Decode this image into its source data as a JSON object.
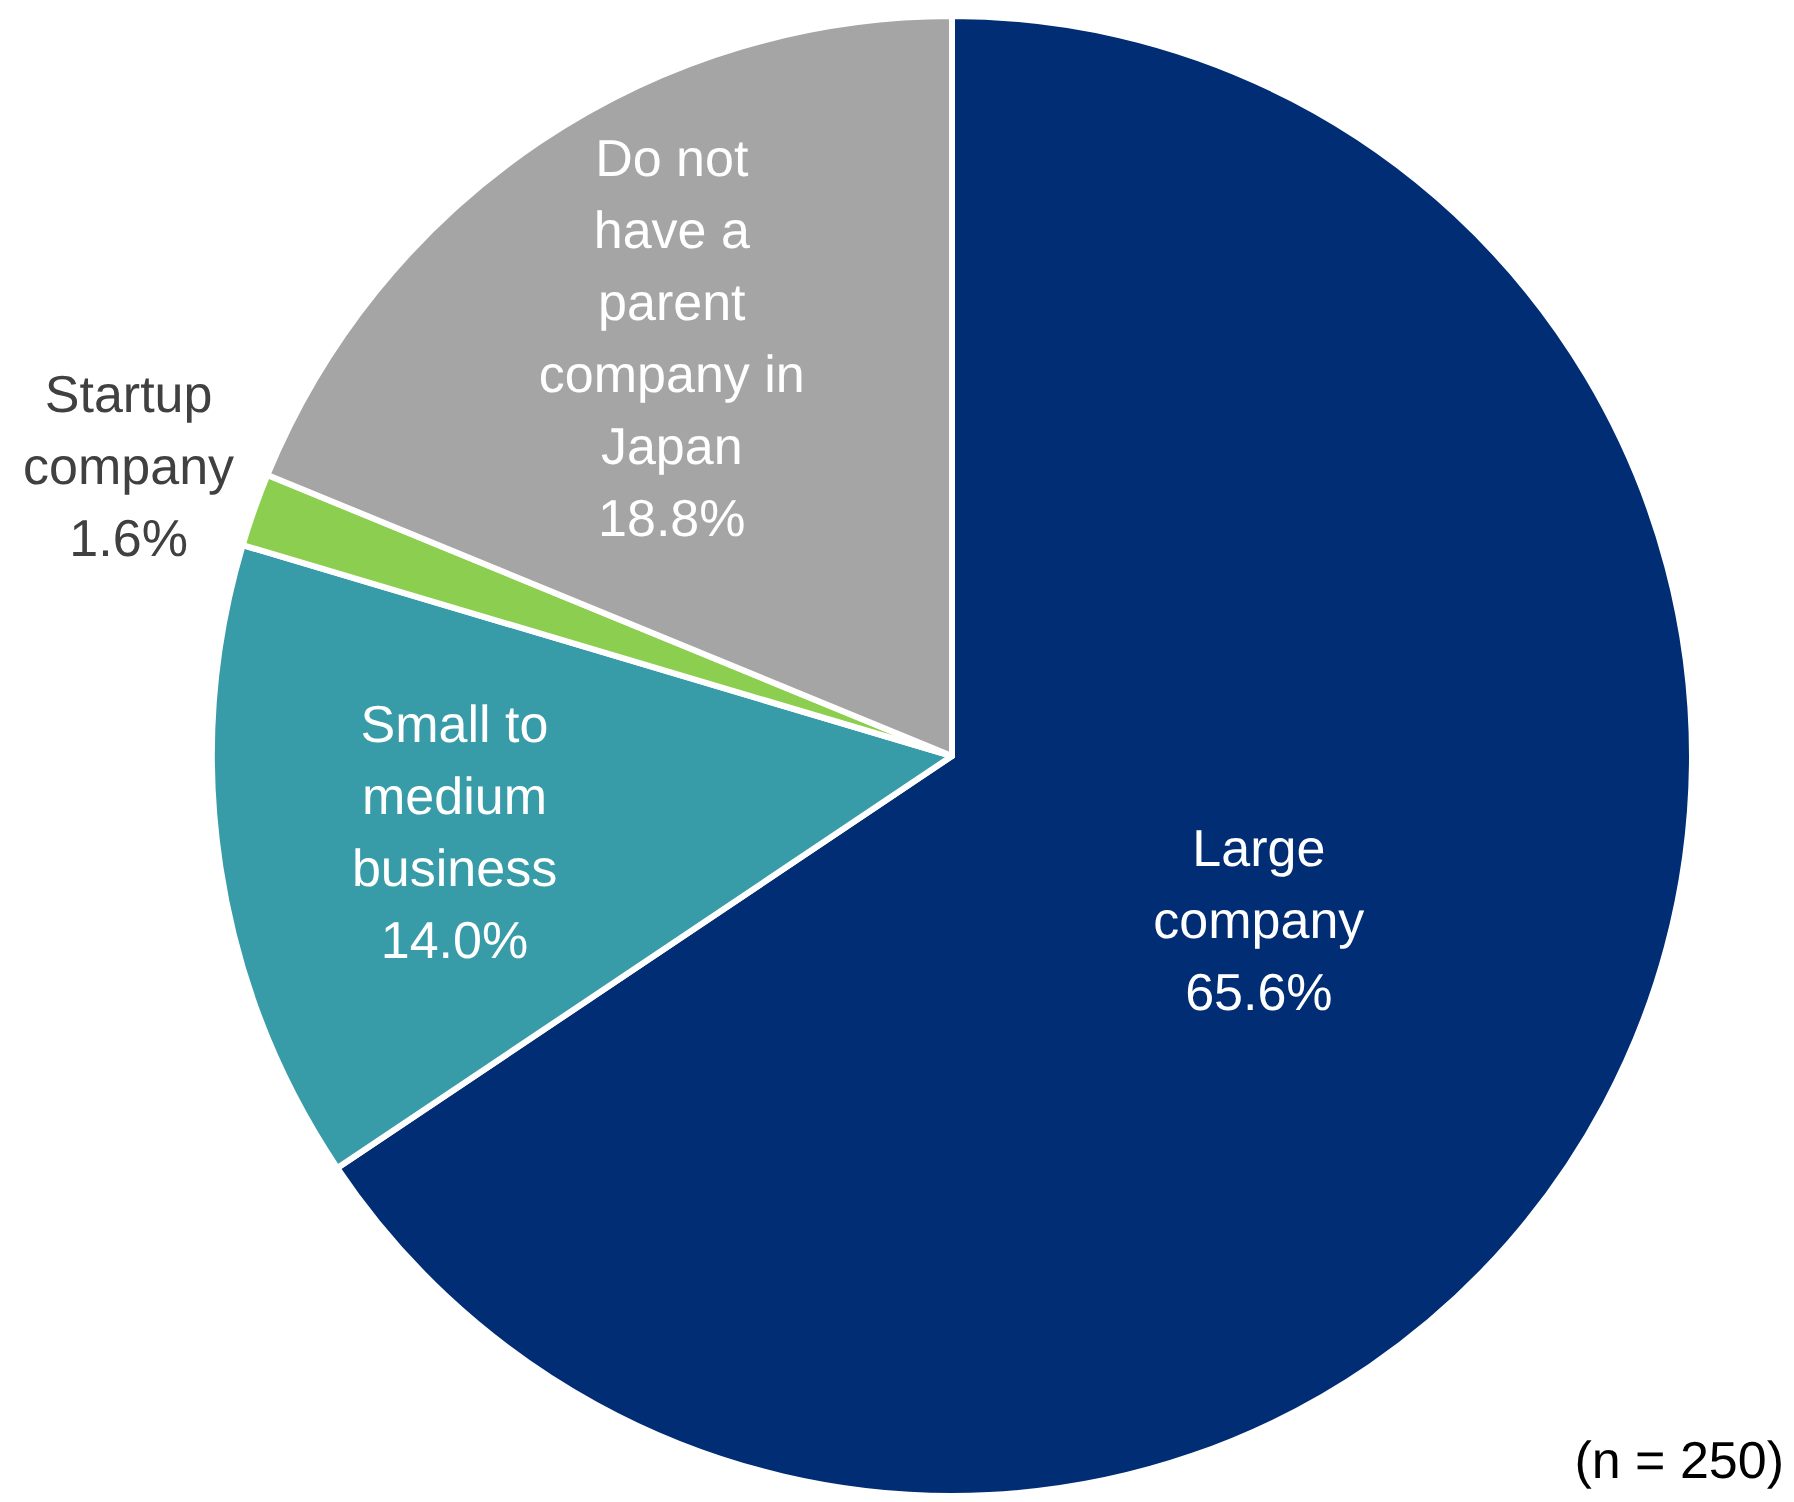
{
  "chart_data": {
    "type": "pie",
    "categories": [
      "Large company",
      "Small to medium business",
      "Startup company",
      "Do not have a parent company in Japan"
    ],
    "values": [
      65.6,
      14.0,
      1.6,
      18.8
    ],
    "value_labels": [
      "65.6%",
      "14.0%",
      "1.6%",
      "18.8%"
    ],
    "colors": [
      "#002d74",
      "#389ca8",
      "#8ccf50",
      "#a5a5a5"
    ],
    "annotations": [
      "(n = 250)"
    ]
  }
}
